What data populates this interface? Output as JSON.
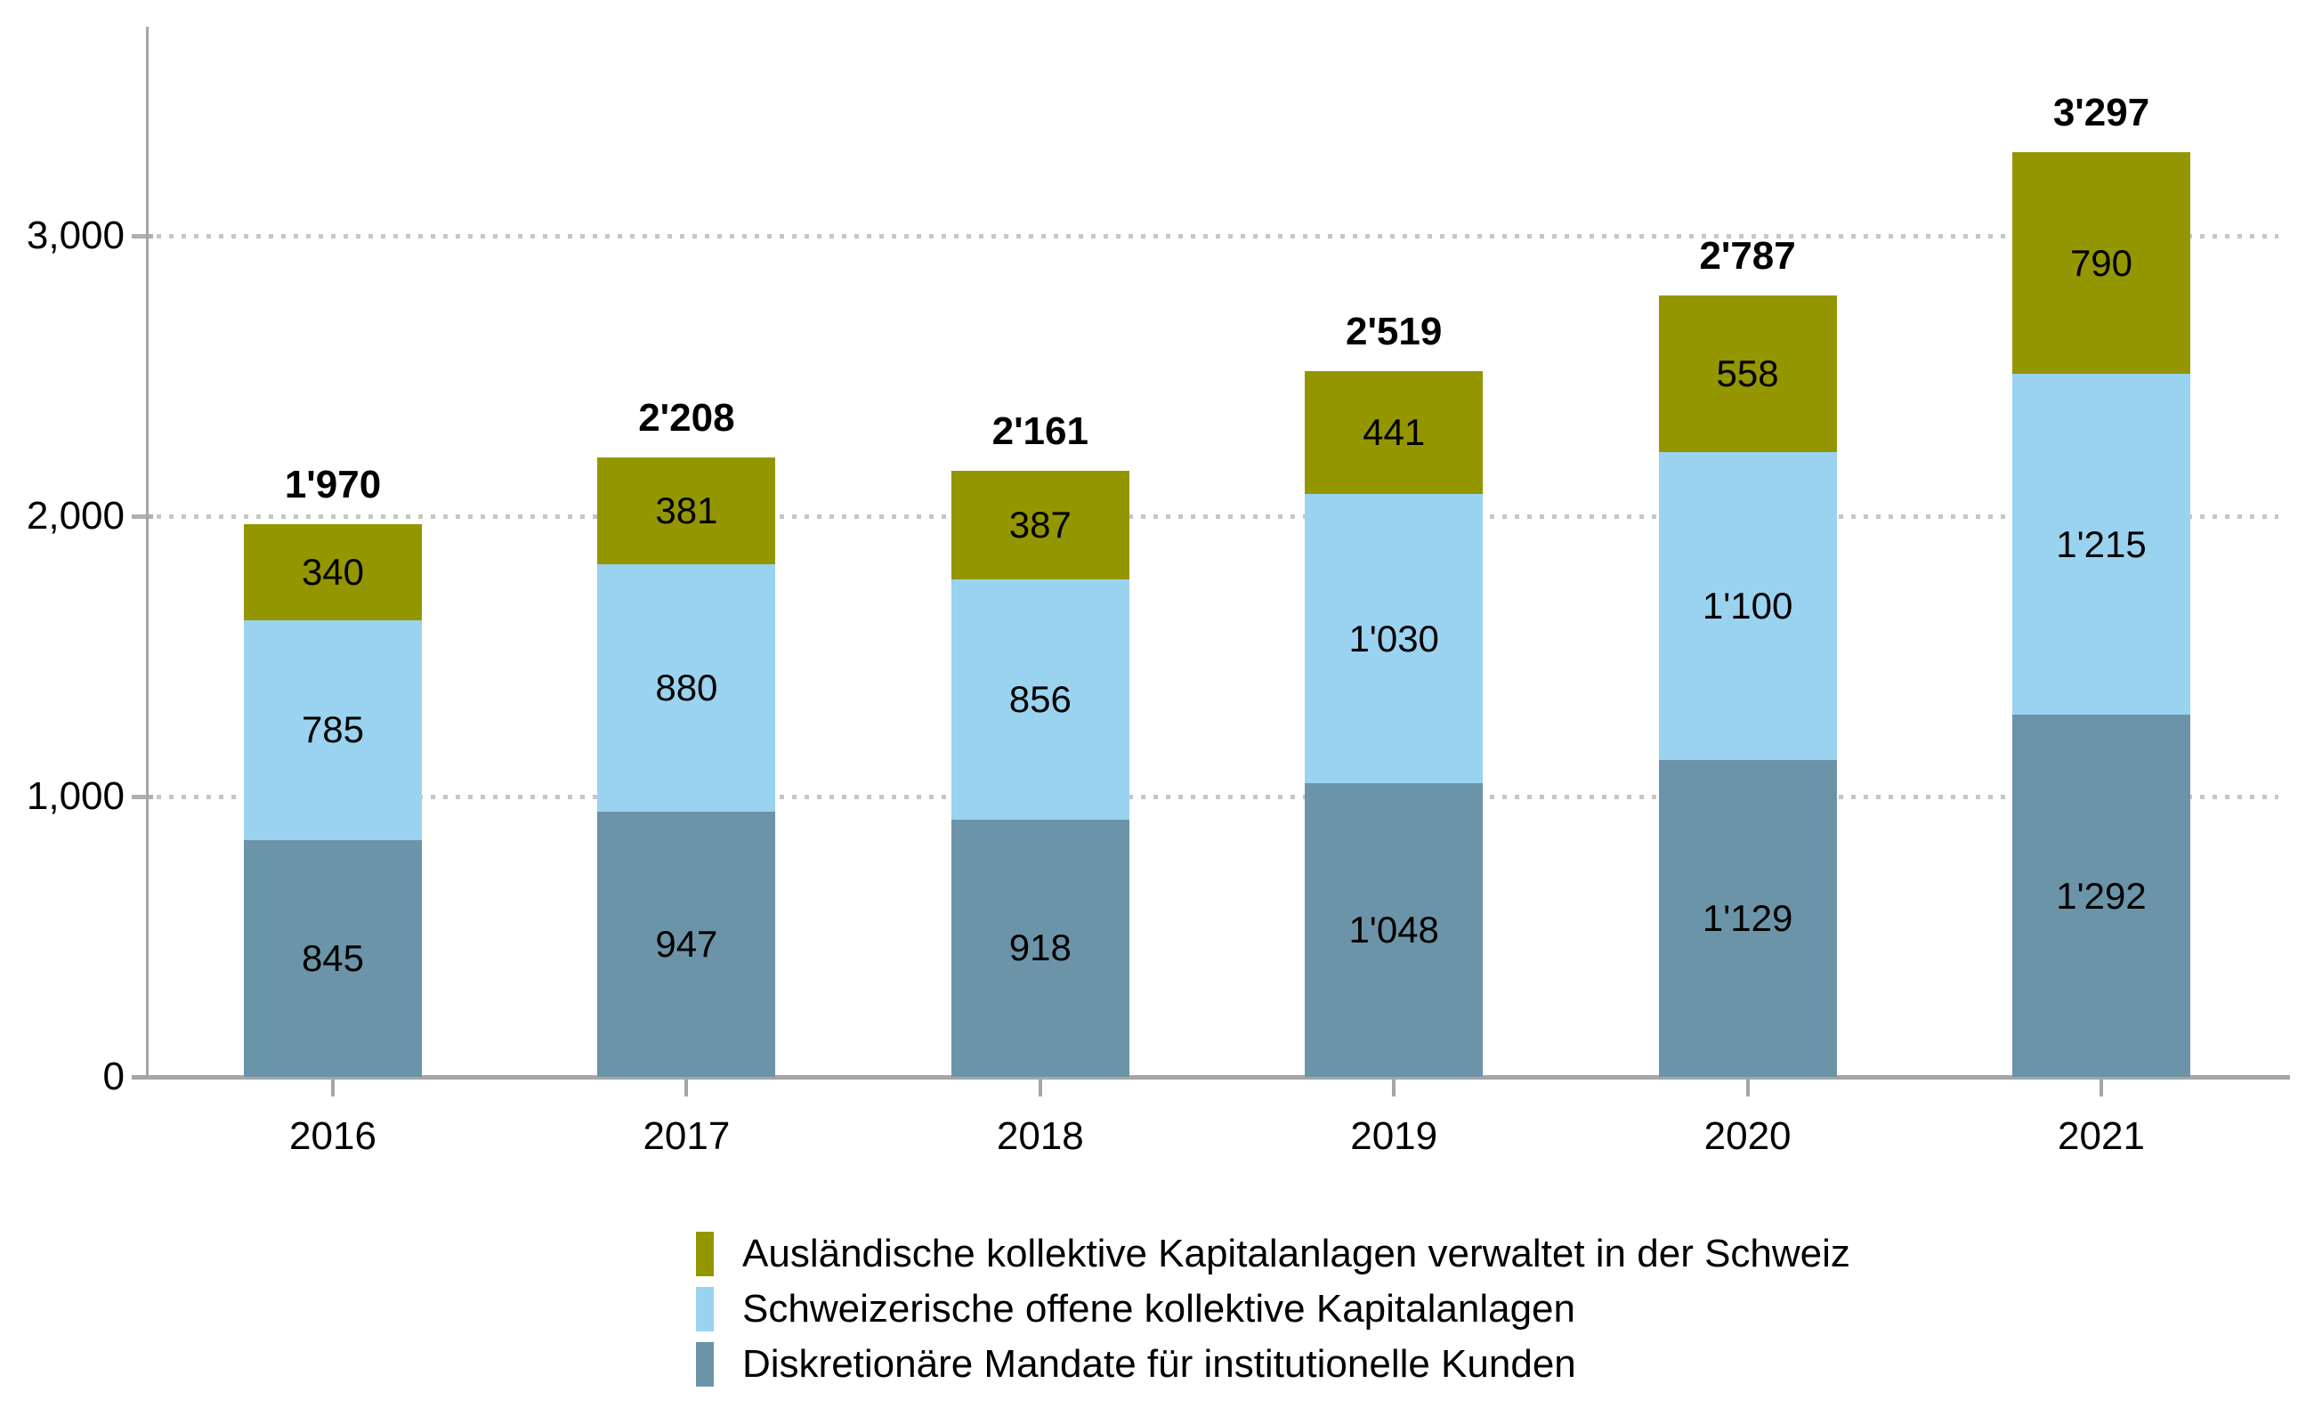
{
  "chart_data": {
    "type": "bar",
    "stacked": true,
    "title": "",
    "xlabel": "",
    "ylabel": "",
    "categories": [
      "2016",
      "2017",
      "2018",
      "2019",
      "2020",
      "2021"
    ],
    "series": [
      {
        "name": "Diskretionäre Mandate für institutionelle Kunden",
        "color": "#6C94A8",
        "values": [
          845,
          947,
          918,
          1048,
          1129,
          1292
        ],
        "labels": [
          "845",
          "947",
          "918",
          "1'048",
          "1'129",
          "1'292"
        ]
      },
      {
        "name": "Schweizerische offene kollektive Kapitalanlagen",
        "color": "#9AD3F0",
        "values": [
          785,
          880,
          856,
          1030,
          1100,
          1215
        ],
        "labels": [
          "785",
          "880",
          "856",
          "1'030",
          "1'100",
          "1'215"
        ]
      },
      {
        "name": "Ausländische kollektive Kapitalanlagen verwaltet in der Schweiz",
        "color": "#949600",
        "values": [
          340,
          381,
          387,
          441,
          558,
          790
        ],
        "labels": [
          "340",
          "381",
          "387",
          "441",
          "558",
          "790"
        ]
      }
    ],
    "totals": {
      "values": [
        1970,
        2208,
        2161,
        2519,
        2787,
        3297
      ],
      "labels": [
        "1'970",
        "2'208",
        "2'161",
        "2'519",
        "2'787",
        "3'297"
      ]
    },
    "y_axis": {
      "min": 0,
      "max": 3500,
      "tick_interval": 1000,
      "ticks": [
        0,
        1000,
        2000,
        3000
      ],
      "tick_labels": [
        "0",
        "1,000",
        "2,000",
        "3,000"
      ]
    },
    "grid": "dotted-horizontal",
    "legend_position": "bottom",
    "legend": [
      {
        "label": "Ausländische kollektive Kapitalanlagen verwaltet in der Schweiz",
        "color": "#949600"
      },
      {
        "label": "Schweizerische offene kollektive Kapitalanlagen",
        "color": "#9AD3F0"
      },
      {
        "label": "Diskretionäre Mandate für institutionelle Kunden",
        "color": "#6C94A8"
      }
    ],
    "colors": {
      "axis": "#A6A6A6",
      "gridline": "#C6C6C6",
      "text": "#000000"
    }
  }
}
